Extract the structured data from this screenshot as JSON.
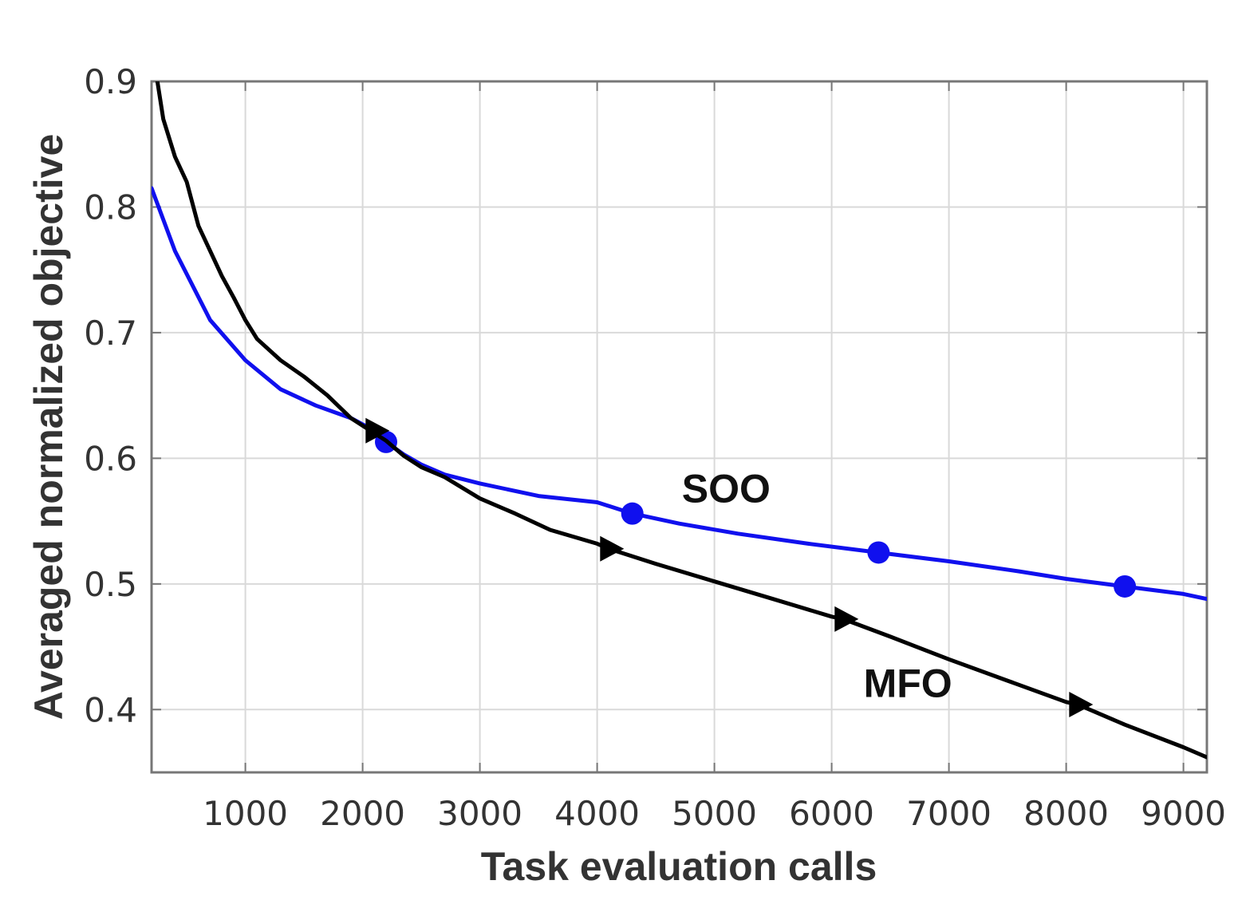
{
  "chart_data": {
    "type": "line",
    "xlabel": "Task evaluation calls",
    "ylabel": "Averaged normalized objective",
    "xlim": [
      200,
      9200
    ],
    "ylim": [
      0.35,
      0.9
    ],
    "xticks": [
      1000,
      2000,
      3000,
      4000,
      5000,
      6000,
      7000,
      8000,
      9000
    ],
    "xtick_labels": [
      "1000",
      "2000",
      "3000",
      "4000",
      "5000",
      "6000",
      "7000",
      "8000",
      "9000"
    ],
    "yticks": [
      0.4,
      0.5,
      0.6,
      0.7,
      0.8,
      0.9
    ],
    "ytick_labels": [
      "0.4",
      "0.5",
      "0.6",
      "0.7",
      "0.8",
      "0.9"
    ],
    "grid": true,
    "series": [
      {
        "name": "SOO",
        "color": "#1010ee",
        "marker": "circle",
        "x": [
          200,
          400,
          700,
          1000,
          1300,
          1600,
          1900,
          2100,
          2200,
          2350,
          2500,
          2700,
          3000,
          3500,
          4000,
          4300,
          4700,
          5200,
          5800,
          6400,
          7000,
          7600,
          8000,
          8500,
          9000,
          9200
        ],
        "y": [
          0.815,
          0.765,
          0.71,
          0.678,
          0.655,
          0.642,
          0.632,
          0.622,
          0.613,
          0.603,
          0.595,
          0.587,
          0.58,
          0.57,
          0.565,
          0.556,
          0.548,
          0.54,
          0.532,
          0.525,
          0.518,
          0.51,
          0.504,
          0.498,
          0.492,
          0.488
        ],
        "marker_points": {
          "x": [
            2200,
            4300,
            6400,
            8500
          ],
          "y": [
            0.613,
            0.556,
            0.525,
            0.498
          ]
        }
      },
      {
        "name": "MFO",
        "color": "#000000",
        "marker": "triangle-right",
        "x": [
          250,
          300,
          400,
          500,
          600,
          700,
          800,
          900,
          1000,
          1100,
          1300,
          1500,
          1700,
          1900,
          2050,
          2200,
          2350,
          2500,
          2700,
          3000,
          3300,
          3600,
          4000,
          4100,
          4500,
          5000,
          5500,
          6000,
          6100,
          6500,
          7000,
          7500,
          8000,
          8100,
          8500,
          9000,
          9200
        ],
        "y": [
          0.9,
          0.87,
          0.84,
          0.82,
          0.785,
          0.765,
          0.745,
          0.728,
          0.71,
          0.695,
          0.678,
          0.665,
          0.65,
          0.632,
          0.623,
          0.614,
          0.602,
          0.593,
          0.585,
          0.568,
          0.556,
          0.543,
          0.532,
          0.528,
          0.516,
          0.502,
          0.488,
          0.474,
          0.472,
          0.458,
          0.44,
          0.423,
          0.406,
          0.404,
          0.388,
          0.37,
          0.362
        ],
        "marker_points": {
          "x": [
            2100,
            4100,
            6100,
            8100
          ],
          "y": [
            0.622,
            0.528,
            0.472,
            0.404
          ]
        }
      }
    ],
    "annotations": [
      {
        "text": "SOO",
        "x": 5100,
        "y": 0.565
      },
      {
        "text": "MFO",
        "x": 6650,
        "y": 0.41
      }
    ]
  }
}
